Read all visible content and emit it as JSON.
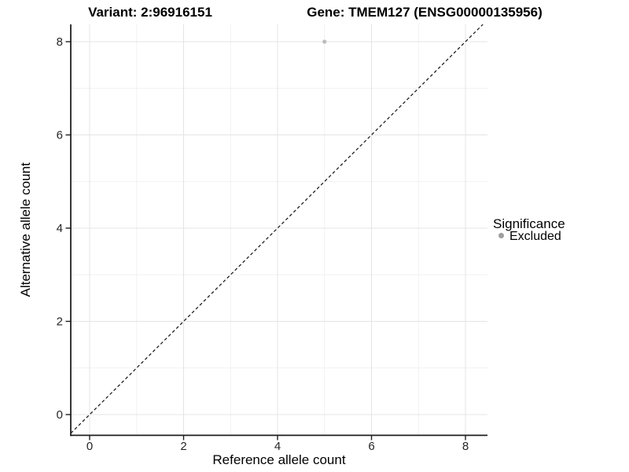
{
  "header": {
    "title_left": "Variant: 2:96916151",
    "title_right": "Gene: TMEM127 (ENSG00000135956)"
  },
  "chart_data": {
    "type": "scatter",
    "title_left": "Variant: 2:96916151",
    "title_right": "Gene: TMEM127 (ENSG00000135956)",
    "xlabel": "Reference allele count",
    "ylabel": "Alternative allele count",
    "x_ticks": [
      "0",
      "2",
      "4",
      "6",
      "8"
    ],
    "y_ticks": [
      "0",
      "2",
      "4",
      "6",
      "8"
    ],
    "x_minor": [
      1,
      3,
      5,
      7
    ],
    "y_minor": [
      1,
      3,
      5,
      7
    ],
    "xlim": [
      -0.4,
      8.47
    ],
    "ylim": [
      -0.44,
      8.37
    ],
    "grid": true,
    "series": [
      {
        "name": "Excluded",
        "color": "#bdbdbd",
        "points": [
          {
            "x": 5,
            "y": 8
          }
        ]
      }
    ],
    "reference_line": {
      "slope": 1,
      "intercept": 0,
      "style": "dashed",
      "color": "#111111"
    },
    "legend": {
      "title": "Significance",
      "position": "right",
      "entries": [
        {
          "label": "Excluded",
          "color": "#9e9e9e"
        }
      ]
    }
  },
  "colors": {
    "background": "#ffffff",
    "grid_major": "#e4e4e4",
    "grid_minor": "#f1f1f1",
    "axis": "#1f1f1f"
  }
}
